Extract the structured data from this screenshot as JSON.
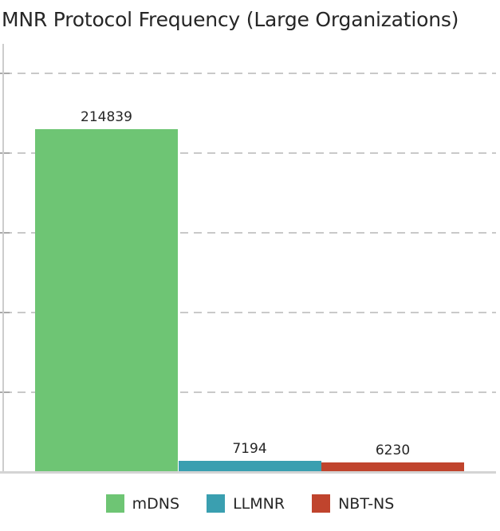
{
  "chart_data": {
    "type": "bar",
    "title": "MNR Protocol Frequency (Large Organizations)",
    "categories": [
      "mDNS",
      "LLMNR",
      "NBT-NS"
    ],
    "values": [
      214839,
      7194,
      6230
    ],
    "data_labels": [
      "214839",
      "7194",
      "6230"
    ],
    "colors": [
      "#6ec574",
      "#3a9fb0",
      "#c0442d"
    ],
    "legend": [
      "mDNS",
      "LLMNR",
      "NBT-NS"
    ],
    "legend_position": "bottom",
    "xlabel": "",
    "ylabel": "",
    "ylim": [
      0,
      268500
    ],
    "gridline_values": [
      50000,
      100000,
      150000,
      200000,
      250000
    ],
    "grid": "dashed-horizontal",
    "y_tick_labels_visible": false
  },
  "colors": {
    "grid": "#c9c9c9",
    "tick": "#a9a9a9",
    "spine": "#cdcdcd",
    "baseline": "#d4d4d4",
    "text": "#262626",
    "background": "#ffffff"
  }
}
